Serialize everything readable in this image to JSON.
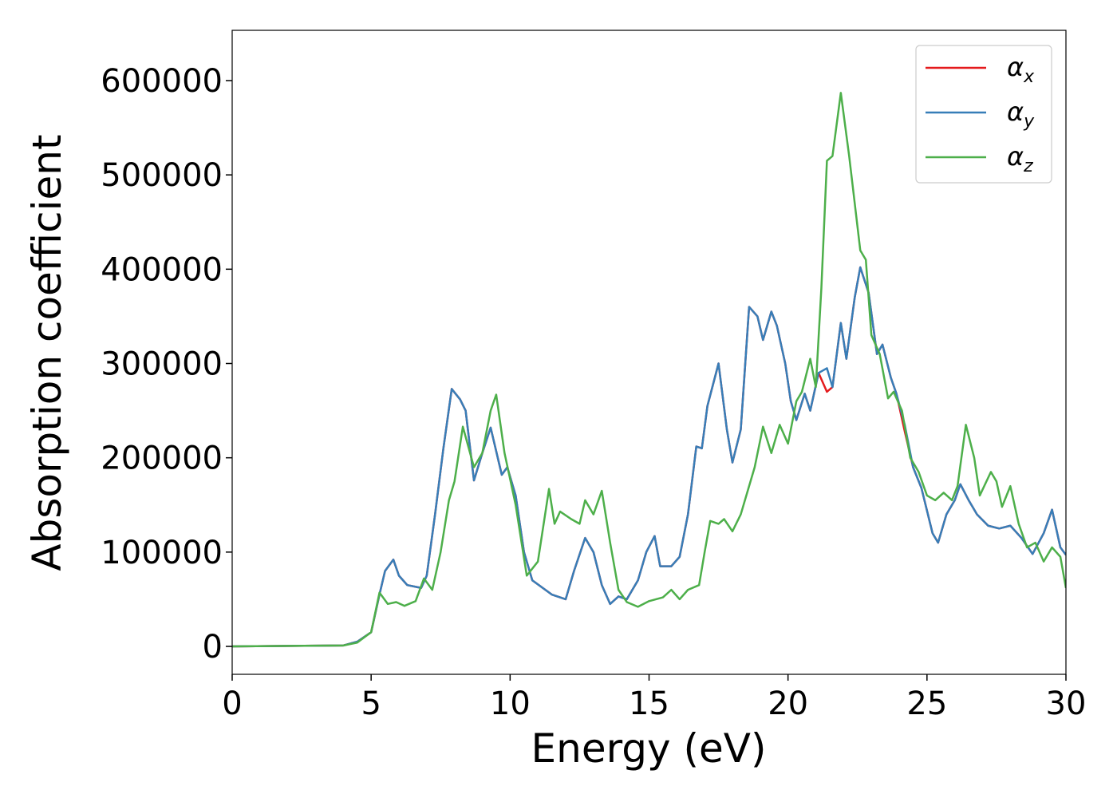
{
  "chart_data": {
    "type": "line",
    "xlabel": "Energy (eV)",
    "ylabel": "Absorption coefficient",
    "xlim": [
      0,
      30
    ],
    "ylim": [
      -29600,
      653300
    ],
    "xticks": [
      0,
      5,
      10,
      15,
      20,
      25,
      30
    ],
    "yticks": [
      0,
      100000,
      200000,
      300000,
      400000,
      500000,
      600000
    ],
    "legend": "upper right",
    "grid": false,
    "series": [
      {
        "name": "αx",
        "color": "#e41a1c",
        "x": [
          0,
          4,
          4.5,
          5,
          5.3,
          5.5,
          5.8,
          6.0,
          6.3,
          6.8,
          7.0,
          7.3,
          7.6,
          7.9,
          8.2,
          8.4,
          8.7,
          9.0,
          9.3,
          9.7,
          9.9,
          10.2,
          10.5,
          10.8,
          11.5,
          12,
          12.3,
          12.7,
          13,
          13.3,
          13.6,
          13.9,
          14.2,
          14.6,
          14.9,
          15.2,
          15.4,
          15.8,
          16.1,
          16.4,
          16.7,
          16.9,
          17.1,
          17.5,
          17.8,
          18.0,
          18.3,
          18.6,
          18.9,
          19.1,
          19.4,
          19.6,
          19.9,
          20.1,
          20.3,
          20.6,
          20.8,
          21.1,
          21.4,
          21.6,
          21.9,
          22.1,
          22.4,
          22.6,
          22.9,
          23.2,
          23.4,
          23.7,
          23.9,
          24.2,
          24.5,
          24.8,
          25.2,
          25.4,
          25.7,
          26.0,
          26.2,
          26.5,
          26.8,
          27.2,
          27.6,
          28.0,
          28.4,
          28.8,
          29.2,
          29.5,
          29.8,
          30
        ],
        "values": [
          0,
          1000,
          5000,
          15000,
          55000,
          80000,
          92000,
          75000,
          65000,
          62000,
          75000,
          140000,
          210000,
          273000,
          262000,
          250000,
          176000,
          205000,
          232000,
          182000,
          190000,
          160000,
          100000,
          70000,
          55000,
          50000,
          80000,
          115000,
          100000,
          65000,
          45000,
          53000,
          50000,
          70000,
          100000,
          117000,
          85000,
          85000,
          95000,
          140000,
          212000,
          210000,
          255000,
          300000,
          230000,
          195000,
          230000,
          360000,
          350000,
          325000,
          355000,
          340000,
          300000,
          260000,
          240000,
          268000,
          250000,
          290000,
          270000,
          275000,
          343000,
          305000,
          370000,
          402000,
          375000,
          310000,
          320000,
          285000,
          268000,
          228000,
          190000,
          168000,
          120000,
          110000,
          140000,
          155000,
          172000,
          155000,
          140000,
          128000,
          125000,
          128000,
          115000,
          98000,
          120000,
          145000,
          105000,
          97000
        ]
      },
      {
        "name": "αy",
        "color": "#377eb8",
        "x": [
          0,
          4,
          4.5,
          5,
          5.3,
          5.5,
          5.8,
          6.0,
          6.3,
          6.8,
          7.0,
          7.3,
          7.6,
          7.9,
          8.2,
          8.4,
          8.7,
          9.0,
          9.3,
          9.7,
          9.9,
          10.2,
          10.5,
          10.8,
          11.5,
          12,
          12.3,
          12.7,
          13,
          13.3,
          13.6,
          13.9,
          14.2,
          14.6,
          14.9,
          15.2,
          15.4,
          15.8,
          16.1,
          16.4,
          16.7,
          16.9,
          17.1,
          17.5,
          17.8,
          18.0,
          18.3,
          18.6,
          18.9,
          19.1,
          19.4,
          19.6,
          19.9,
          20.1,
          20.3,
          20.6,
          20.8,
          21.1,
          21.4,
          21.6,
          21.9,
          22.1,
          22.4,
          22.6,
          22.9,
          23.2,
          23.4,
          23.7,
          23.9,
          24.2,
          24.5,
          24.8,
          25.2,
          25.4,
          25.7,
          26.0,
          26.2,
          26.5,
          26.8,
          27.2,
          27.6,
          28.0,
          28.4,
          28.8,
          29.2,
          29.5,
          29.8,
          30
        ],
        "values": [
          0,
          1000,
          5000,
          15000,
          55000,
          80000,
          92000,
          75000,
          65000,
          62000,
          75000,
          140000,
          210000,
          273000,
          262000,
          250000,
          176000,
          205000,
          232000,
          182000,
          190000,
          160000,
          100000,
          70000,
          55000,
          50000,
          80000,
          115000,
          100000,
          65000,
          45000,
          53000,
          50000,
          70000,
          100000,
          117000,
          85000,
          85000,
          95000,
          140000,
          212000,
          210000,
          255000,
          300000,
          230000,
          195000,
          230000,
          360000,
          350000,
          325000,
          355000,
          340000,
          300000,
          260000,
          240000,
          268000,
          250000,
          290000,
          295000,
          275000,
          343000,
          305000,
          370000,
          402000,
          375000,
          310000,
          320000,
          285000,
          268000,
          235000,
          190000,
          168000,
          120000,
          110000,
          140000,
          155000,
          172000,
          155000,
          140000,
          128000,
          125000,
          128000,
          115000,
          98000,
          120000,
          145000,
          105000,
          97000
        ]
      },
      {
        "name": "αz",
        "color": "#4daf4a",
        "x": [
          0,
          4,
          4.5,
          5,
          5.3,
          5.6,
          5.9,
          6.2,
          6.6,
          6.9,
          7.2,
          7.5,
          7.8,
          8.0,
          8.3,
          8.7,
          9.0,
          9.3,
          9.5,
          9.8,
          10.2,
          10.6,
          11.0,
          11.4,
          11.6,
          11.8,
          12.2,
          12.5,
          12.7,
          13.0,
          13.3,
          13.6,
          13.9,
          14.2,
          14.6,
          15.0,
          15.5,
          15.8,
          16.1,
          16.4,
          16.8,
          17.0,
          17.2,
          17.5,
          17.7,
          18.0,
          18.3,
          18.8,
          19.1,
          19.4,
          19.7,
          20.0,
          20.3,
          20.5,
          20.8,
          21.0,
          21.2,
          21.4,
          21.6,
          21.9,
          22.2,
          22.4,
          22.6,
          22.8,
          23.0,
          23.3,
          23.6,
          23.8,
          24.1,
          24.4,
          24.7,
          25.0,
          25.3,
          25.6,
          25.9,
          26.1,
          26.4,
          26.7,
          26.9,
          27.3,
          27.5,
          27.7,
          28.0,
          28.3,
          28.6,
          28.9,
          29.2,
          29.5,
          29.8,
          30
        ],
        "values": [
          0,
          1000,
          4000,
          15000,
          57000,
          45000,
          47000,
          43000,
          48000,
          72000,
          60000,
          100000,
          155000,
          175000,
          233000,
          190000,
          205000,
          250000,
          267000,
          205000,
          150000,
          75000,
          90000,
          167000,
          130000,
          143000,
          135000,
          130000,
          155000,
          140000,
          165000,
          110000,
          60000,
          47000,
          42000,
          48000,
          52000,
          60000,
          50000,
          60000,
          65000,
          100000,
          133000,
          130000,
          135000,
          122000,
          140000,
          190000,
          233000,
          205000,
          235000,
          215000,
          260000,
          270000,
          305000,
          275000,
          380000,
          515000,
          520000,
          587000,
          520000,
          470000,
          420000,
          410000,
          330000,
          310000,
          263000,
          270000,
          250000,
          200000,
          185000,
          160000,
          155000,
          163000,
          155000,
          170000,
          235000,
          200000,
          160000,
          185000,
          175000,
          148000,
          170000,
          130000,
          105000,
          110000,
          90000,
          105000,
          95000,
          62000
        ]
      }
    ]
  }
}
